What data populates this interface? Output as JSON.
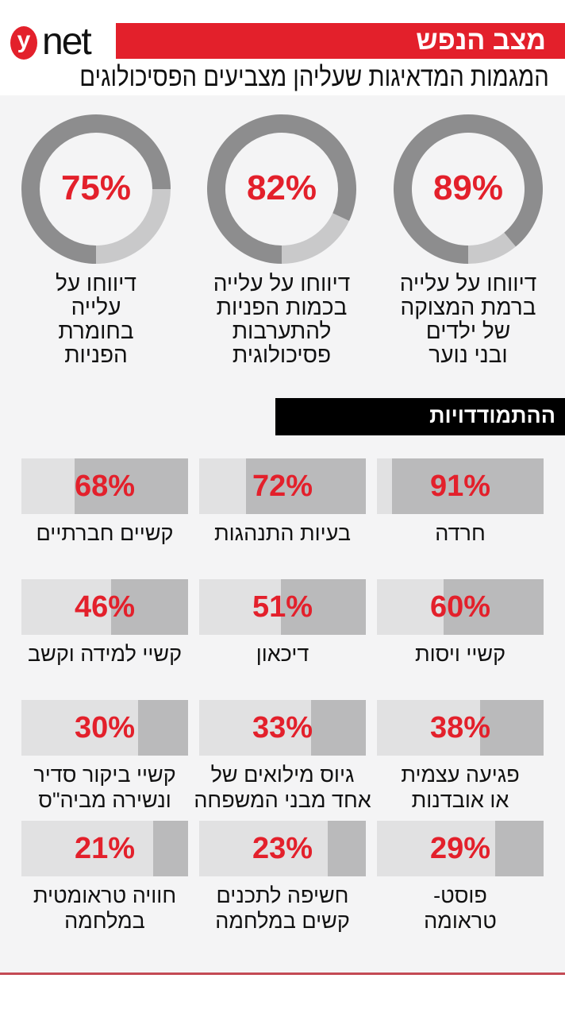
{
  "header": {
    "logo_text": "ynet",
    "section": "מצב הנפש",
    "title": "המגמות המדאיגות שעליהן מצביעים הפסיכולוגים"
  },
  "colors": {
    "accent": "#e3202b",
    "ring_dark": "#8d8d8e",
    "ring_light": "#c9c9ca",
    "bar_bg": "#e1e1e2",
    "bar_fill": "#bababb"
  },
  "chart_data": [
    {
      "type": "pie",
      "variant": "donut",
      "items": [
        {
          "label": "דיווחו על עלייה\nברמת המצוקה\nשל ילדים\nובני נוער",
          "value": 89,
          "display": "89%"
        },
        {
          "label": "דיווחו על עלייה\nבכמות הפניות\nלהתערבות\nפסיכולוגית",
          "value": 82,
          "display": "82%"
        },
        {
          "label": "דיווחו על\nעלייה\nבחומרת\nהפניות",
          "value": 75,
          "display": "75%"
        }
      ]
    },
    {
      "type": "bar",
      "title": "ההתמודדויות",
      "items": [
        {
          "label": "חרדה",
          "value": 91,
          "display": "91%"
        },
        {
          "label": "בעיות התנהגות",
          "value": 72,
          "display": "72%"
        },
        {
          "label": "קשיים חברתיים",
          "value": 68,
          "display": "68%"
        },
        {
          "label": "קשיי ויסות",
          "value": 60,
          "display": "60%"
        },
        {
          "label": "דיכאון",
          "value": 51,
          "display": "51%"
        },
        {
          "label": "קשיי למידה וקשב",
          "value": 46,
          "display": "46%"
        },
        {
          "label": "פגיעה עצמית\nאו אובדנות",
          "value": 38,
          "display": "38%"
        },
        {
          "label": "גיוס מילואים של\nאחד מבני המשפחה",
          "value": 33,
          "display": "33%"
        },
        {
          "label": "קשיי ביקור סדיר\nונשירה מביה\"ס",
          "value": 30,
          "display": "30%"
        },
        {
          "label": "פוסט-\nטראומה",
          "value": 29,
          "display": "29%"
        },
        {
          "label": "חשיפה לתכנים\nקשים במלחמה",
          "value": 23,
          "display": "23%"
        },
        {
          "label": "חוויה טראומטית\nבמלחמה",
          "value": 21,
          "display": "21%"
        }
      ]
    }
  ]
}
